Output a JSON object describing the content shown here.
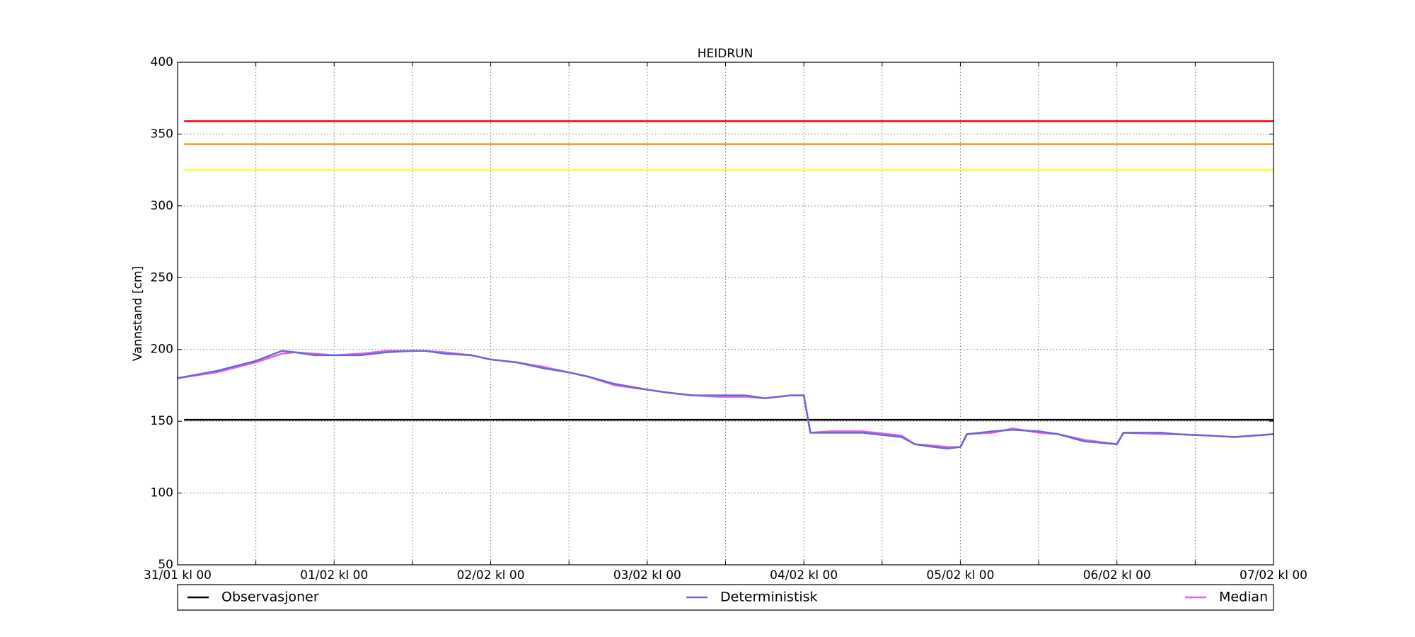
{
  "chart_data": {
    "type": "line",
    "title": "HEIDRUN",
    "ylabel": "Vannstand [cm]",
    "xlim": [
      0,
      168
    ],
    "ylim": [
      50,
      400
    ],
    "xticks": [
      {
        "value": 0,
        "label": "31/01 kl 00"
      },
      {
        "value": 12,
        "label": null
      },
      {
        "value": 24,
        "label": "01/02 kl 00"
      },
      {
        "value": 36,
        "label": null
      },
      {
        "value": 48,
        "label": "02/02 kl 00"
      },
      {
        "value": 60,
        "label": null
      },
      {
        "value": 72,
        "label": "03/02 kl 00"
      },
      {
        "value": 84,
        "label": null
      },
      {
        "value": 96,
        "label": "04/02 kl 00"
      },
      {
        "value": 108,
        "label": null
      },
      {
        "value": 120,
        "label": "05/02 kl 00"
      },
      {
        "value": 132,
        "label": null
      },
      {
        "value": 144,
        "label": "06/02 kl 00"
      },
      {
        "value": 156,
        "label": null
      },
      {
        "value": 168,
        "label": "07/02 kl 00"
      }
    ],
    "yticks": [
      50,
      100,
      150,
      200,
      250,
      300,
      350,
      400
    ],
    "grid": true,
    "hlines": [
      {
        "value": 359,
        "color": "#ff0000"
      },
      {
        "value": 343,
        "color": "#ff9900"
      },
      {
        "value": 325,
        "color": "#ffff33"
      }
    ],
    "series": [
      {
        "name": "Observasjoner",
        "color": "#000000",
        "x": [
          1,
          168
        ],
        "values": [
          151,
          151
        ]
      },
      {
        "name": "Median",
        "color": "#dd66dd",
        "x": [
          0,
          6,
          12,
          16,
          18,
          21,
          24,
          28,
          32,
          36,
          38,
          41,
          45,
          48,
          52,
          56,
          60,
          63,
          67,
          72,
          75,
          79,
          83,
          87,
          90,
          94,
          96,
          97,
          100,
          105,
          111,
          113,
          116,
          118,
          120,
          121,
          125,
          128,
          132,
          135,
          139,
          144,
          145,
          151,
          153,
          158,
          162,
          168
        ],
        "values": [
          180,
          184,
          191,
          197,
          198,
          197,
          196,
          197,
          199,
          199,
          199,
          198,
          196,
          193,
          191,
          188,
          184,
          181,
          175,
          172,
          170,
          168,
          167,
          167,
          166,
          168,
          168,
          142,
          143,
          143,
          140,
          134,
          133,
          132,
          132,
          141,
          142,
          145,
          142,
          141,
          137,
          134,
          142,
          141,
          141,
          140,
          139,
          141
        ]
      },
      {
        "name": "Deterministisk",
        "color": "#6666dd",
        "x": [
          0,
          6,
          12,
          16,
          18,
          21,
          24,
          28,
          32,
          36,
          38,
          41,
          45,
          48,
          52,
          56,
          60,
          63,
          67,
          72,
          75,
          79,
          83,
          87,
          90,
          94,
          96,
          97,
          100,
          105,
          111,
          113,
          116,
          118,
          120,
          121,
          125,
          128,
          132,
          135,
          139,
          144,
          145,
          151,
          153,
          158,
          162,
          168
        ],
        "values": [
          180,
          185,
          192,
          199,
          198,
          196,
          196,
          196,
          198,
          199,
          199,
          197,
          196,
          193,
          191,
          187,
          184,
          181,
          176,
          172,
          170,
          168,
          168,
          168,
          166,
          168,
          168,
          142,
          142,
          142,
          139,
          134,
          132,
          131,
          132,
          141,
          143,
          144,
          143,
          141,
          136,
          134,
          142,
          142,
          141,
          140,
          139,
          141
        ]
      }
    ],
    "legend_order": [
      0,
      2,
      1
    ]
  }
}
